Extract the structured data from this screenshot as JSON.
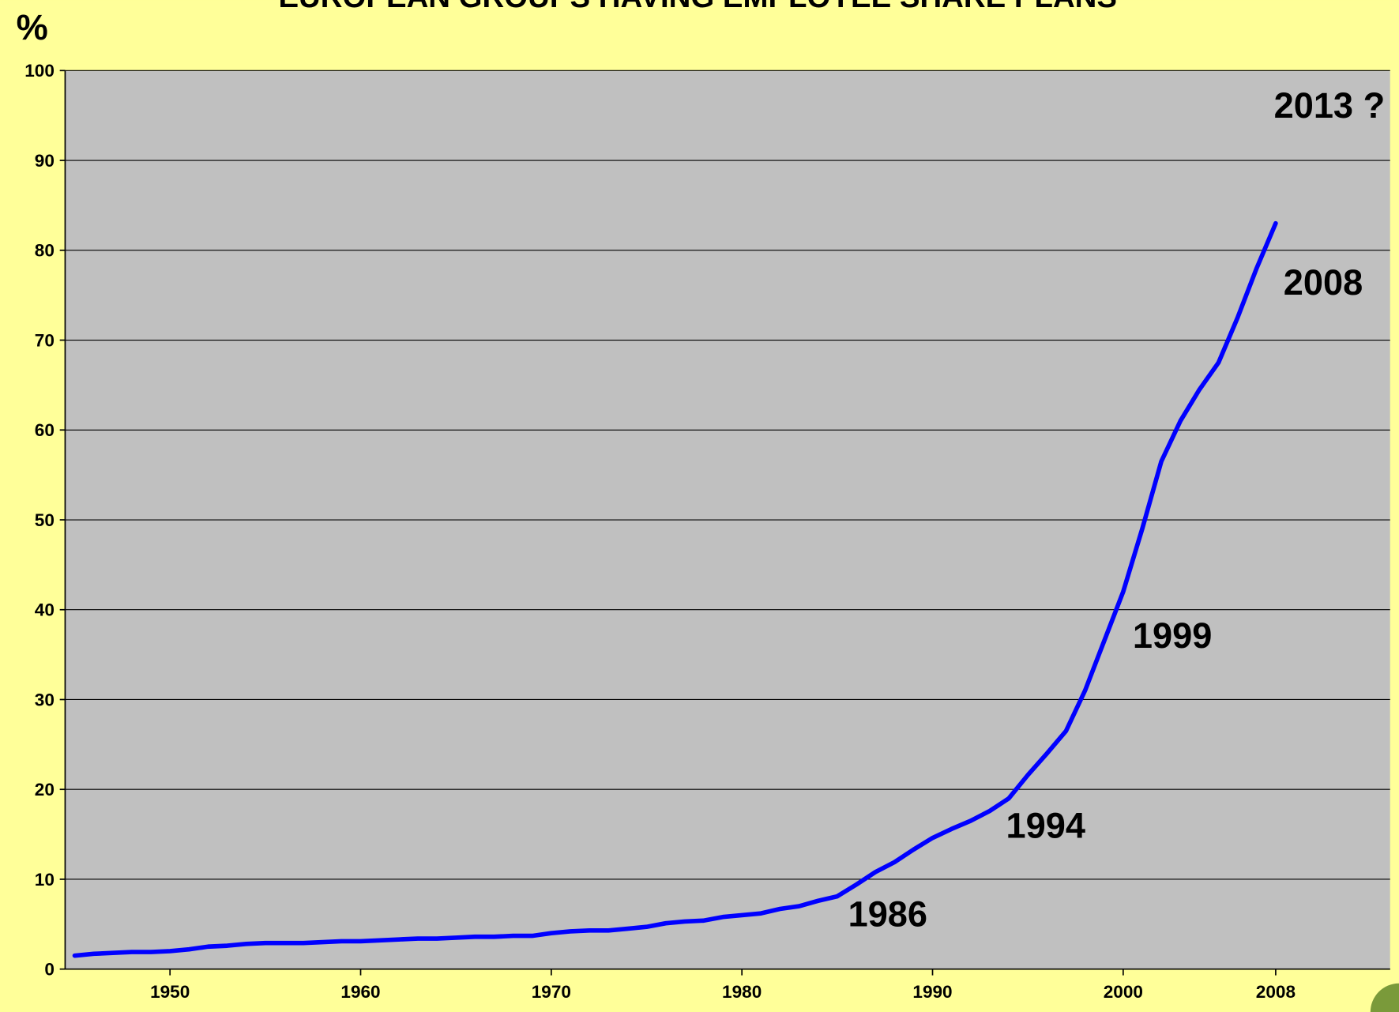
{
  "chart_data": {
    "type": "line",
    "title": "EUROPEAN GROUPS HAVING EMPLOYEE SHARE PLANS",
    "y_label": "%",
    "annotations": [
      "1986",
      "1994",
      "1999",
      "2008",
      "2013 ?"
    ],
    "x": [
      1945,
      1946,
      1947,
      1948,
      1949,
      1950,
      1951,
      1952,
      1953,
      1954,
      1955,
      1956,
      1957,
      1958,
      1959,
      1960,
      1961,
      1962,
      1963,
      1964,
      1965,
      1966,
      1967,
      1968,
      1969,
      1970,
      1971,
      1972,
      1973,
      1974,
      1975,
      1976,
      1977,
      1978,
      1979,
      1980,
      1981,
      1982,
      1983,
      1984,
      1985,
      1986,
      1987,
      1988,
      1989,
      1990,
      1991,
      1992,
      1993,
      1994,
      1995,
      1996,
      1997,
      1998,
      1999,
      2000,
      2001,
      2002,
      2003,
      2004,
      2005,
      2006,
      2007,
      2008
    ],
    "series": [
      {
        "name": "European groups having employee share plans",
        "color": "#0000ff",
        "values": [
          1.5,
          1.7,
          1.8,
          1.9,
          1.9,
          2.0,
          2.2,
          2.5,
          2.6,
          2.8,
          2.9,
          2.9,
          2.9,
          3.0,
          3.1,
          3.1,
          3.2,
          3.3,
          3.4,
          3.4,
          3.5,
          3.6,
          3.6,
          3.7,
          3.7,
          4.0,
          4.2,
          4.3,
          4.3,
          4.5,
          4.7,
          5.1,
          5.3,
          5.4,
          5.8,
          6.0,
          6.2,
          6.7,
          7.0,
          7.6,
          8.1,
          9.4,
          10.8,
          11.9,
          13.3,
          14.6,
          15.6,
          16.5,
          17.6,
          19.0,
          21.6,
          24.0,
          26.5,
          31.0,
          36.5,
          42.0,
          49.0,
          56.5,
          61.0,
          64.5,
          67.5,
          72.5,
          78.0,
          83.0
        ]
      }
    ],
    "xlim": [
      1944.5,
      2014
    ],
    "xticks": [
      1950,
      1960,
      1970,
      1980,
      1990,
      2000,
      2008
    ],
    "ylim": [
      0,
      100
    ],
    "yticks": [
      0,
      10,
      20,
      30,
      40,
      50,
      60,
      70,
      80,
      90,
      100
    ],
    "grid": true
  }
}
